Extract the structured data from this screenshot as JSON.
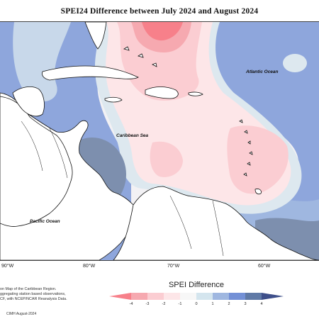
{
  "title": "SPEI24 Difference between July 2024 and August 2024",
  "map": {
    "labels": {
      "atlantic": "Atlantic Ocean",
      "caribbean": "Caribbean Sea",
      "pacific": "Pacific Ocean"
    },
    "longitude_ticks": [
      "90°W",
      "80°W",
      "70°W",
      "60°W"
    ]
  },
  "credit_lines": [
    "on Map of the Caribbean Region.",
    "ggregating station based observations,",
    "CF, with NCEP/NCAR Reanalysis Data."
  ],
  "footer": "CIMH August-2024",
  "legend": {
    "title": "SPEI Difference",
    "ticks": [
      "-4",
      "-3",
      "-2",
      "-1",
      "0",
      "1",
      "2",
      "3",
      "4"
    ],
    "colors": [
      "#f7808a",
      "#f6a9b0",
      "#fbcdd2",
      "#fde6e8",
      "#f7f7f7",
      "#d4e5ee",
      "#9fb7e0",
      "#7390d6",
      "#5f79a6",
      "#3e4f8a"
    ]
  },
  "colors": {
    "land": "#ffffff",
    "coast": "#111111",
    "neutral": "#f2f1f4"
  }
}
